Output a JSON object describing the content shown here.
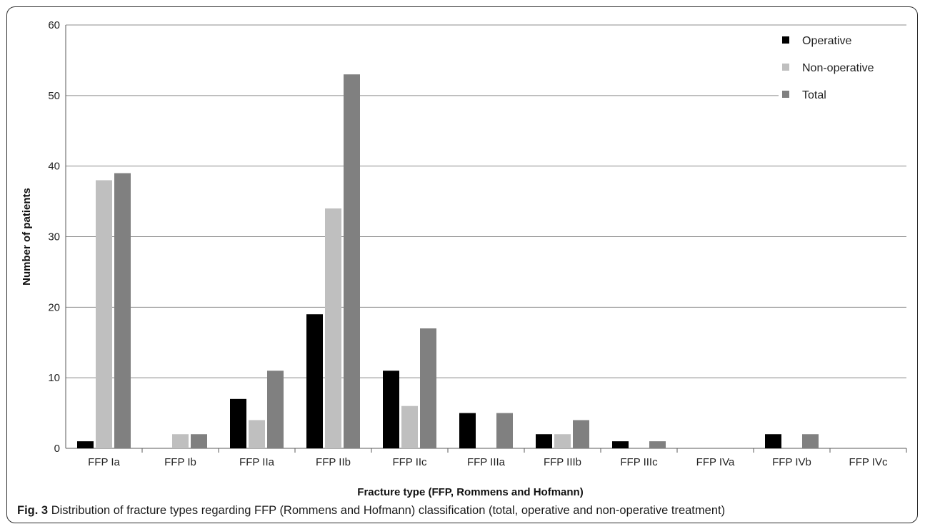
{
  "caption": {
    "label": "Fig. 3",
    "text": "Distribution of fracture types regarding FFP (Rommens and Hofmann) classification (total, operative and non-operative treatment)"
  },
  "colors": {
    "operative": "#000000",
    "non_operative": "#bfbfbf",
    "total": "#808080",
    "gridline": "#8c8c8c",
    "axis": "#595959"
  },
  "chart_data": {
    "type": "bar",
    "title": "",
    "xlabel": "Fracture type (FFP, Rommens and Hofmann)",
    "ylabel": "Number of patients",
    "ylim": [
      0,
      60
    ],
    "yticks": [
      0,
      10,
      20,
      30,
      40,
      50,
      60
    ],
    "grid": true,
    "legend_position": "top-right",
    "categories": [
      "FFP Ia",
      "FFP Ib",
      "FFP IIa",
      "FFP IIb",
      "FFP IIc",
      "FFP IIIa",
      "FFP IIIb",
      "FFP IIIc",
      "FFP IVa",
      "FFP IVb",
      "FFP IVc"
    ],
    "series": [
      {
        "name": "Operative",
        "color": "#000000",
        "values": [
          1,
          0,
          7,
          19,
          11,
          5,
          2,
          1,
          0,
          2,
          0
        ]
      },
      {
        "name": "Non-operative",
        "color": "#bfbfbf",
        "values": [
          38,
          2,
          4,
          34,
          6,
          0,
          2,
          0,
          0,
          0,
          0
        ]
      },
      {
        "name": "Total",
        "color": "#808080",
        "values": [
          39,
          2,
          11,
          53,
          17,
          5,
          4,
          1,
          0,
          2,
          0
        ]
      }
    ]
  }
}
